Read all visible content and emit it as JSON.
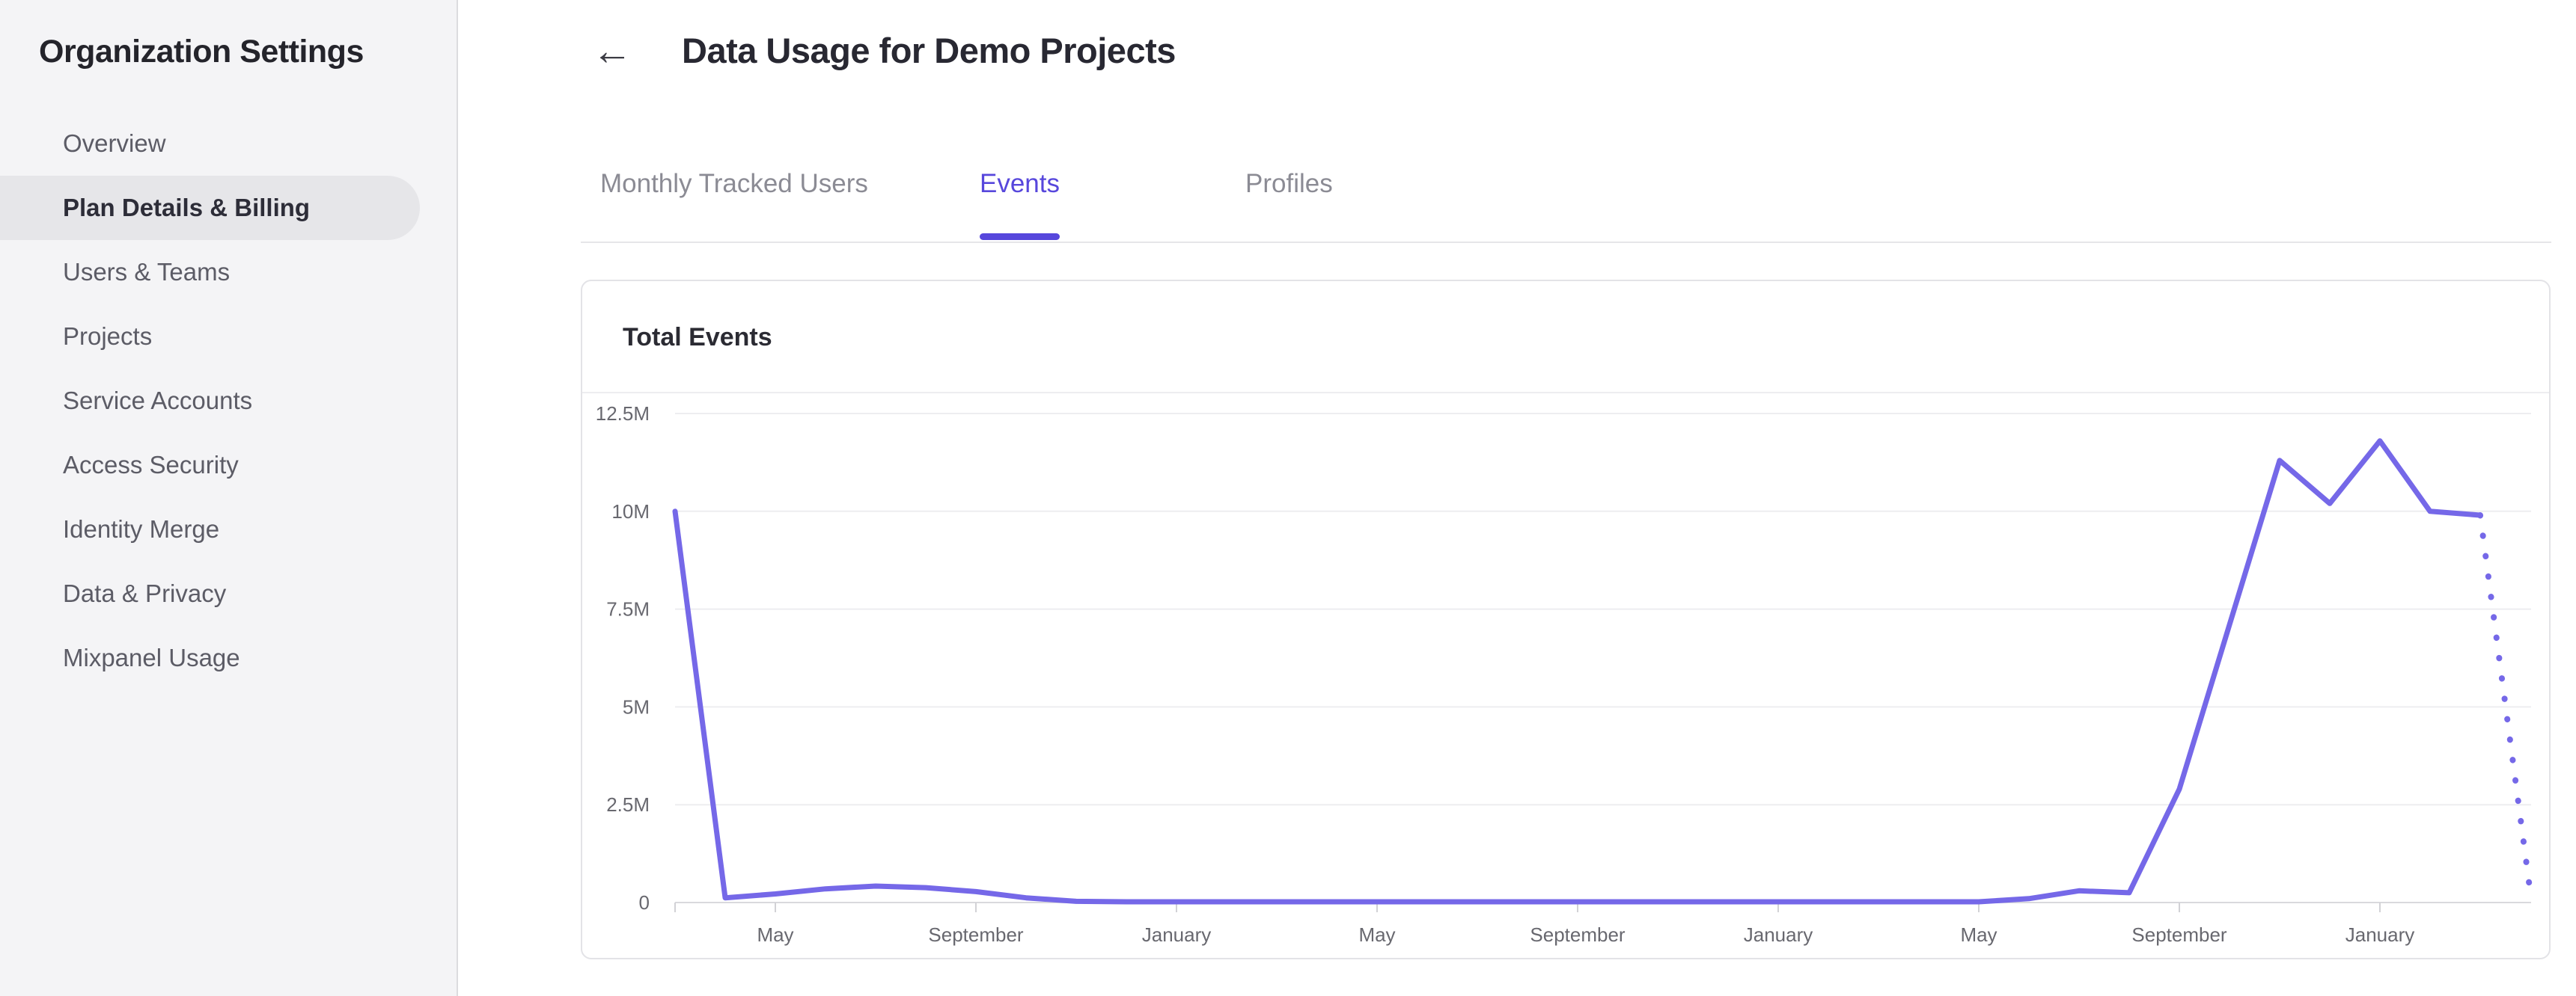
{
  "sidebar": {
    "title": "Organization Settings",
    "items": [
      {
        "label": "Overview",
        "slug": "overview",
        "selected": false
      },
      {
        "label": "Plan Details & Billing",
        "slug": "plan-details-billing",
        "selected": true
      },
      {
        "label": "Users & Teams",
        "slug": "users-teams",
        "selected": false
      },
      {
        "label": "Projects",
        "slug": "projects",
        "selected": false
      },
      {
        "label": "Service Accounts",
        "slug": "service-accounts",
        "selected": false
      },
      {
        "label": "Access Security",
        "slug": "access-security",
        "selected": false
      },
      {
        "label": "Identity Merge",
        "slug": "identity-merge",
        "selected": false
      },
      {
        "label": "Data & Privacy",
        "slug": "data-privacy",
        "selected": false
      },
      {
        "label": "Mixpanel Usage",
        "slug": "mixpanel-usage",
        "selected": false
      }
    ]
  },
  "header": {
    "back_icon": "←",
    "title": "Data Usage for Demo Projects"
  },
  "tabs": [
    {
      "label": "Monthly Tracked Users",
      "slug": "monthly-tracked-users",
      "active": false
    },
    {
      "label": "Events",
      "slug": "events",
      "active": true
    },
    {
      "label": "Profiles",
      "slug": "profiles",
      "active": false
    }
  ],
  "card": {
    "title": "Total Events"
  },
  "colors": {
    "accent": "#5747dc",
    "line": "#7568e8",
    "gridline": "#ededf0",
    "axis_line": "#d9d9dd",
    "tick_mark": "#d2d2d6",
    "selected_pill": "#e6e6e9",
    "sidebar_bg": "#f4f4f6"
  },
  "chart_data": {
    "type": "line",
    "title": "Total Events",
    "ylabel": "",
    "xlabel": "",
    "unit": "events",
    "ylim_millions": [
      0,
      12.5
    ],
    "grid": "horizontal",
    "legend": "none",
    "y_ticks": [
      {
        "value_millions": 0,
        "label": "0"
      },
      {
        "value_millions": 2.5,
        "label": "2.5M"
      },
      {
        "value_millions": 5,
        "label": "5M"
      },
      {
        "value_millions": 7.5,
        "label": "7.5M"
      },
      {
        "value_millions": 10,
        "label": "10M"
      },
      {
        "value_millions": 12.5,
        "label": "12.5M"
      }
    ],
    "x_months": [
      "Mar",
      "Apr",
      "May",
      "Jun",
      "Jul",
      "Aug",
      "Sep",
      "Oct",
      "Nov",
      "Dec",
      "Jan",
      "Feb",
      "Mar",
      "Apr",
      "May",
      "Jun",
      "Jul",
      "Aug",
      "Sep",
      "Oct",
      "Nov",
      "Dec",
      "Jan",
      "Feb",
      "Mar",
      "Apr",
      "May",
      "Jun",
      "Jul",
      "Aug",
      "Sep",
      "Oct",
      "Nov",
      "Dec",
      "Jan",
      "Feb",
      "Mar",
      "Apr"
    ],
    "x_ticks": [
      {
        "index": 2,
        "label": "May"
      },
      {
        "index": 6,
        "label": "September"
      },
      {
        "index": 10,
        "label": "January"
      },
      {
        "index": 14,
        "label": "May"
      },
      {
        "index": 18,
        "label": "September"
      },
      {
        "index": 22,
        "label": "January"
      },
      {
        "index": 26,
        "label": "May"
      },
      {
        "index": 30,
        "label": "September"
      },
      {
        "index": 34,
        "label": "January"
      }
    ],
    "series": [
      {
        "name": "Total Events",
        "last_point_projected": true,
        "values_millions": [
          10,
          0.12,
          0.22,
          0.35,
          0.42,
          0.38,
          0.28,
          0.12,
          0.03,
          0.02,
          0.02,
          0.02,
          0.02,
          0.02,
          0.02,
          0.02,
          0.02,
          0.02,
          0.02,
          0.02,
          0.02,
          0.02,
          0.02,
          0.02,
          0.02,
          0.02,
          0.02,
          0.1,
          0.3,
          0.25,
          2.9,
          7.1,
          11.3,
          10.2,
          11.8,
          10.0,
          9.9,
          0.25
        ]
      }
    ]
  }
}
